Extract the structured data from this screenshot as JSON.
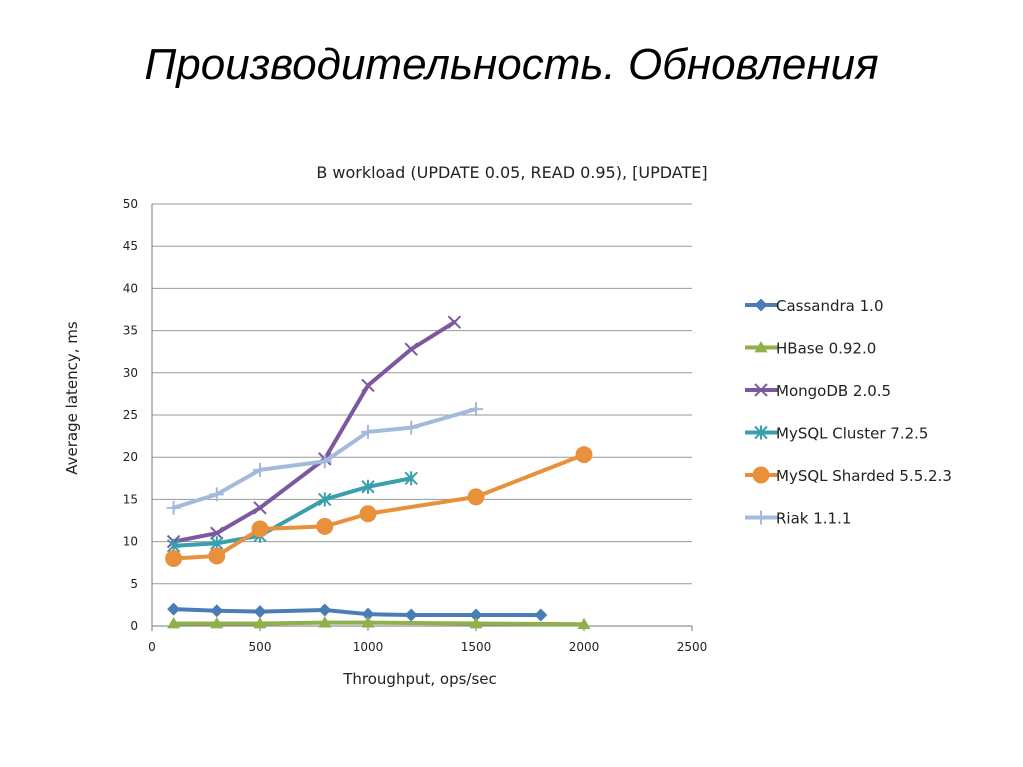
{
  "slide": {
    "title": "Производительность. Обновления"
  },
  "chart_data": {
    "type": "line",
    "title": "B workload (UPDATE 0.05, READ 0.95), [UPDATE]",
    "xlabel": "Throughput, ops/sec",
    "ylabel": "Average latency, ms",
    "xlim": [
      0,
      2500
    ],
    "ylim": [
      0,
      50
    ],
    "xticks": [
      0,
      500,
      1000,
      1500,
      2000,
      2500
    ],
    "yticks": [
      0,
      5,
      10,
      15,
      20,
      25,
      30,
      35,
      40,
      45,
      50
    ],
    "grid": "horizontal",
    "legend_position": "right",
    "series": [
      {
        "name": "Cassandra 1.0",
        "color": "#4a7db5",
        "marker": "diamond",
        "x": [
          100,
          300,
          500,
          800,
          1000,
          1200,
          1500,
          1800
        ],
        "y": [
          2.0,
          1.8,
          1.7,
          1.9,
          1.4,
          1.3,
          1.3,
          1.3
        ]
      },
      {
        "name": "HBase 0.92.0",
        "color": "#8fb04a",
        "marker": "triangle",
        "x": [
          100,
          300,
          500,
          800,
          1000,
          1500,
          2000
        ],
        "y": [
          0.3,
          0.3,
          0.3,
          0.4,
          0.4,
          0.3,
          0.2
        ]
      },
      {
        "name": "MongoDB 2.0.5",
        "color": "#7b58a0",
        "marker": "x",
        "x": [
          100,
          300,
          500,
          800,
          1000,
          1200,
          1400
        ],
        "y": [
          10.0,
          11.0,
          14.0,
          19.8,
          28.5,
          32.8,
          36.0
        ]
      },
      {
        "name": "MySQL Cluster 7.2.5",
        "color": "#3a9fac",
        "marker": "asterisk",
        "x": [
          100,
          300,
          500,
          800,
          1000,
          1200
        ],
        "y": [
          9.5,
          9.8,
          10.7,
          15.0,
          16.5,
          17.5
        ]
      },
      {
        "name": "MySQL Sharded 5.5.2.3",
        "color": "#e8903c",
        "marker": "circle",
        "x": [
          100,
          300,
          500,
          800,
          1000,
          1500,
          2000
        ],
        "y": [
          8.0,
          8.3,
          11.5,
          11.8,
          13.3,
          15.3,
          20.3
        ]
      },
      {
        "name": "Riak 1.1.1",
        "color": "#a3bbdb",
        "marker": "plus",
        "x": [
          100,
          300,
          500,
          800,
          1000,
          1200,
          1500
        ],
        "y": [
          14.0,
          15.6,
          18.5,
          19.5,
          23.0,
          23.5,
          25.7
        ]
      }
    ]
  }
}
